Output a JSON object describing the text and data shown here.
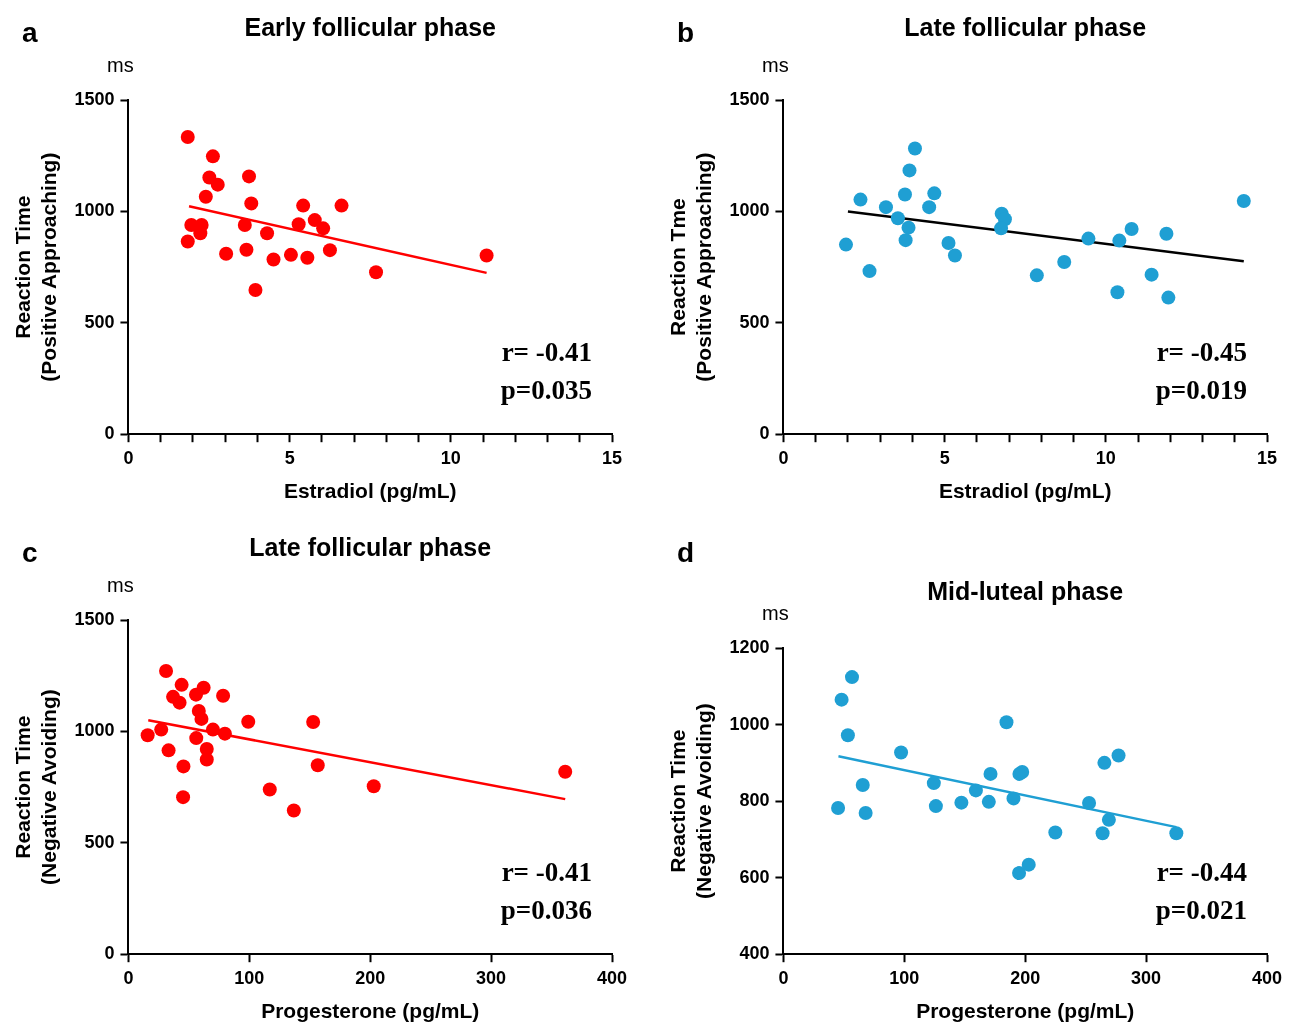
{
  "chart_data": [
    {
      "type": "scatter",
      "title": "Early follicular phase",
      "xlabel": "Estradiol (pg/mL)",
      "ylabel": "Reaction Time\n(Positive Approaching)",
      "annotations": [
        "a",
        "ms",
        "r= -0.41",
        "p=0.035"
      ],
      "xlim": [
        0,
        15
      ],
      "ylim": [
        0,
        1500
      ],
      "xticks": [
        0,
        {
          "value": 1,
          "label": null
        },
        {
          "value": 2,
          "label": null
        },
        {
          "value": 3,
          "label": null
        },
        {
          "value": 4,
          "label": null
        },
        5,
        {
          "value": 6,
          "label": null
        },
        {
          "value": 7,
          "label": null
        },
        {
          "value": 8,
          "label": null
        },
        {
          "value": 9,
          "label": null
        },
        10,
        {
          "value": 11,
          "label": null
        },
        {
          "value": 12,
          "label": null
        },
        {
          "value": 13,
          "label": null
        },
        {
          "value": 14,
          "label": null
        },
        15
      ],
      "yticks": [
        0,
        500,
        1000,
        1500
      ],
      "grid": false,
      "legend": false,
      "marker": "circle",
      "series": [
        {
          "type": "scatter",
          "color": "#ff0000",
          "x": [
            1.84,
            2.62,
            2.51,
            2.77,
            2.4,
            3.74,
            3.81,
            1.95,
            2.27,
            2.23,
            1.84,
            3.03,
            3.61,
            3.66,
            4.3,
            4.5,
            5.04,
            5.28,
            5.42,
            5.78,
            6.04,
            5.55,
            6.25,
            6.61,
            7.68,
            11.11,
            3.94
          ],
          "values": [
            1334,
            1247,
            1152,
            1120,
            1066,
            1157,
            1036,
            939,
            939,
            902,
            865,
            810,
            939,
            828,
            902,
            784,
            805,
            942,
            1026,
            961,
            924,
            792,
            826,
            1026,
            727,
            802,
            647
          ]
        },
        {
          "type": "line",
          "color": "#ff0000",
          "marker": "none",
          "x": [
            1.88,
            11.11
          ],
          "values": [
            1023,
            724
          ]
        }
      ]
    },
    {
      "type": "scatter",
      "title": "Late follicular phase",
      "xlabel": "Estradiol (pg/mL)",
      "ylabel": "Reaction Tme\n(Positive Approaching)",
      "annotations": [
        "b",
        "ms",
        "r= -0.45",
        "p=0.019"
      ],
      "xlim": [
        0,
        15
      ],
      "ylim": [
        0,
        1500
      ],
      "xticks": [
        0,
        {
          "value": 1,
          "label": null
        },
        {
          "value": 2,
          "label": null
        },
        {
          "value": 3,
          "label": null
        },
        {
          "value": 4,
          "label": null
        },
        5,
        {
          "value": 6,
          "label": null
        },
        {
          "value": 7,
          "label": null
        },
        {
          "value": 8,
          "label": null
        },
        {
          "value": 9,
          "label": null
        },
        10,
        {
          "value": 11,
          "label": null
        },
        {
          "value": 12,
          "label": null
        },
        {
          "value": 13,
          "label": null
        },
        {
          "value": 14,
          "label": null
        },
        15
      ],
      "yticks": [
        0,
        500,
        1000,
        1500
      ],
      "grid": false,
      "legend": false,
      "marker": "circle",
      "series": [
        {
          "type": "scatter",
          "color": "#1f9fd3",
          "x": [
            1.94,
            2.39,
            2.67,
            3.18,
            3.55,
            3.77,
            3.91,
            4.08,
            3.88,
            3.79,
            4.52,
            4.68,
            5.12,
            5.32,
            6.77,
            6.87,
            6.75,
            7.86,
            8.71,
            9.46,
            10.42,
            10.36,
            10.8,
            11.42,
            11.88,
            11.94,
            14.28
          ],
          "values": [
            851,
            1053,
            732,
            1019,
            969,
            1076,
            1184,
            1282,
            927,
            871,
            1019,
            1081,
            858,
            802,
            990,
            965,
            924,
            713,
            773,
            878,
            869,
            637,
            921,
            716,
            900,
            613,
            1047
          ]
        },
        {
          "type": "line",
          "color": "#000000",
          "marker": "none",
          "x": [
            2.0,
            14.28
          ],
          "values": [
            1000,
            776
          ]
        }
      ]
    },
    {
      "type": "scatter",
      "title": "Late follicular phase",
      "xlabel": "Progesterone (pg/mL)",
      "ylabel": "Reaction Time\n(Negative Avoiding)",
      "annotations": [
        "c",
        "ms",
        "r= -0.41",
        "p=0.036"
      ],
      "xlim": [
        0,
        400
      ],
      "ylim": [
        0,
        1500
      ],
      "xticks": [
        0,
        100,
        200,
        300,
        400
      ],
      "yticks": [
        0,
        500,
        1000,
        1500
      ],
      "grid": false,
      "legend": false,
      "marker": "circle",
      "series": [
        {
          "type": "scatter",
          "color": "#ff0000",
          "x": [
            15.9,
            27.1,
            31.1,
            33.2,
            36.9,
            42.3,
            44,
            45.5,
            45.2,
            56.1,
            55.9,
            62.2,
            58.2,
            60.4,
            64.8,
            64.8,
            69.9,
            78.3,
            79.8,
            99.1,
            116.9,
            136.8,
            152.8,
            156.6,
            202.9,
            361.3
          ],
          "values": [
            983,
            1008,
            1271,
            915,
            1155,
            1129,
            1209,
            843,
            705,
            970,
            1165,
            1196,
            1092,
            1056,
            921,
            874,
            1008,
            1160,
            990,
            1043,
            739,
            645,
            1042,
            848,
            754,
            819
          ]
        },
        {
          "type": "line",
          "color": "#ff0000",
          "marker": "none",
          "x": [
            16.4,
            361.3
          ],
          "values": [
            1050,
            696
          ]
        }
      ]
    },
    {
      "type": "scatter",
      "title": "Mid-luteal phase",
      "xlabel": "Progesterone (pg/mL)",
      "ylabel": "Reaction Time\n(Negative Avoiding)",
      "annotations": [
        "d",
        "ms",
        "r= -0.44",
        "p=0.021"
      ],
      "xlim": [
        0,
        400
      ],
      "ylim": [
        400,
        1200
      ],
      "xticks": [
        0,
        100,
        200,
        300,
        400
      ],
      "yticks": [
        400,
        600,
        800,
        1000,
        1200
      ],
      "grid": false,
      "legend": false,
      "marker": "circle",
      "series": [
        {
          "type": "scatter",
          "color": "#1f9fd3",
          "x": [
            45.2,
            48.1,
            56.7,
            53.3,
            65.6,
            68,
            97.3,
            124.4,
            126.1,
            147.2,
            159.2,
            169.9,
            171.3,
            184.5,
            190.3,
            195.2,
            197.5,
            194.9,
            202.9,
            224.9,
            252.8,
            264,
            265.5,
            269.2,
            277.2,
            325
          ],
          "values": [
            782,
            1065,
            1124,
            972,
            842,
            769,
            927,
            847,
            787,
            796,
            828,
            798,
            871,
            1006,
            807,
            871,
            876,
            612,
            634,
            718,
            795,
            716,
            900,
            751,
            919,
            716
          ]
        },
        {
          "type": "line",
          "color": "#1f9fd3",
          "marker": "none",
          "x": [
            45.5,
            325
          ],
          "values": [
            917,
            732
          ]
        }
      ]
    }
  ]
}
